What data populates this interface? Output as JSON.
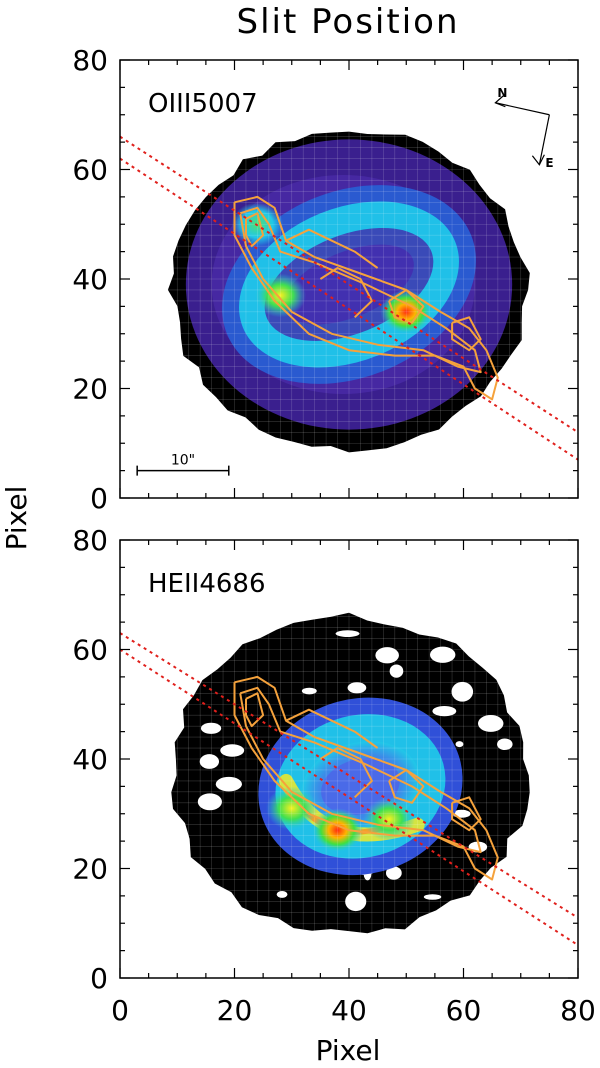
{
  "figure": {
    "title": "Slit Position",
    "ylabel": "Pixel",
    "xlabel": "Pixel"
  },
  "chart_data": [
    {
      "type": "heatmap",
      "panel_label": "OIII5007",
      "xlim": [
        0,
        80
      ],
      "ylim": [
        0,
        80
      ],
      "xticks": [
        "0",
        "20",
        "40",
        "60",
        "80"
      ],
      "yticks": [
        "0",
        "20",
        "40",
        "60",
        "80"
      ],
      "x_tick_labels_visible": false,
      "grid": true,
      "colormap": "rainbow (black-purple-blue-cyan-green-yellow-red)",
      "scale_bar_label": "10\"",
      "scale_bar_x": [
        3,
        19
      ],
      "scale_bar_y": 5,
      "compass": {
        "north_label": "N",
        "east_label": "E",
        "origin": [
          75,
          70
        ]
      },
      "emission_region": {
        "center": [
          40,
          38
        ],
        "radius_x": 31,
        "radius_y": 29
      },
      "shell": {
        "center": [
          40,
          39
        ],
        "radius_x": 18,
        "radius_y": 12,
        "tilt_deg": -22
      },
      "bright_knots": [
        {
          "x": 28,
          "y": 37,
          "level": "yellow"
        },
        {
          "x": 50,
          "y": 34,
          "level": "red"
        },
        {
          "x": 24,
          "y": 50,
          "level": "green"
        }
      ],
      "slit_lines": [
        {
          "x0": 0,
          "y0": 66,
          "x1": 80,
          "y1": 12
        },
        {
          "x0": 0,
          "y0": 62,
          "x1": 80,
          "y1": 7
        }
      ],
      "contour_color": "#f5a23c",
      "slit_color": "#e0201c"
    },
    {
      "type": "heatmap",
      "panel_label": "HEII4686",
      "xlim": [
        0,
        80
      ],
      "ylim": [
        0,
        80
      ],
      "xticks": [
        "0",
        "20",
        "40",
        "60",
        "80"
      ],
      "yticks": [
        "0",
        "20",
        "40",
        "60",
        "80"
      ],
      "x_tick_labels_visible": true,
      "grid": true,
      "colormap": "rainbow (black-purple-blue-cyan-green-yellow-red)",
      "emission_region": {
        "center": [
          40,
          37
        ],
        "radius_x": 31,
        "radius_y": 29
      },
      "shell": {
        "center": [
          42,
          35
        ],
        "radius_x": 13,
        "radius_y": 11,
        "tilt_deg": -15
      },
      "bright_knots": [
        {
          "x": 30,
          "y": 31,
          "level": "yellow"
        },
        {
          "x": 38,
          "y": 27,
          "level": "red"
        },
        {
          "x": 47,
          "y": 29,
          "level": "yellow"
        }
      ],
      "slit_lines": [
        {
          "x0": 0,
          "y0": 63,
          "x1": 80,
          "y1": 11
        },
        {
          "x0": 0,
          "y0": 60,
          "x1": 80,
          "y1": 6
        }
      ],
      "contour_color": "#f5a23c",
      "slit_color": "#e0201c"
    }
  ]
}
